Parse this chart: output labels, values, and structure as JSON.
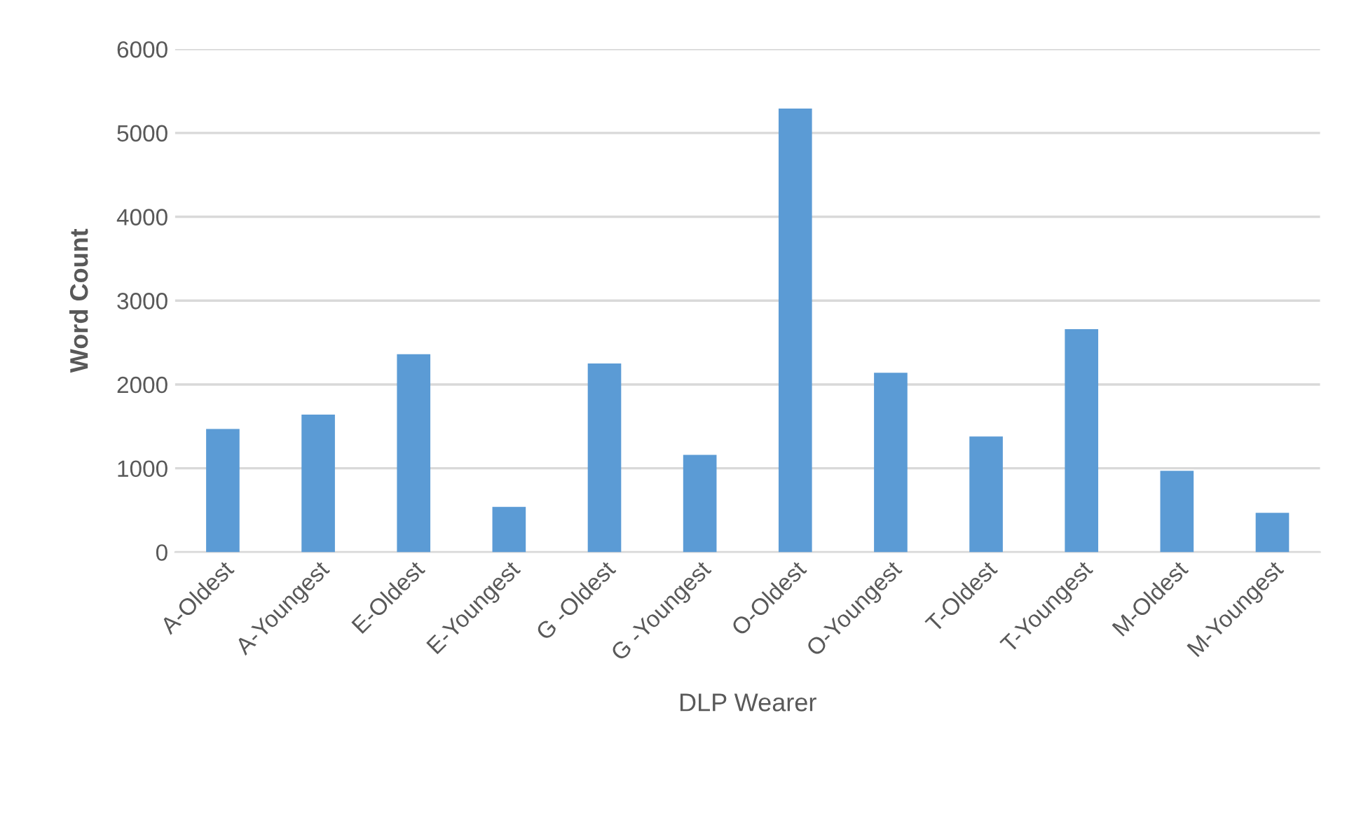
{
  "chart_data": {
    "type": "bar",
    "xlabel": "DLP Wearer",
    "ylabel": "Word Count",
    "categories": [
      "A-Oldest",
      "A-Youngest",
      "E-Oldest",
      "E-Youngest",
      "G -Oldest",
      "G -Youngest",
      "O-Oldest",
      "O-Youngest",
      "T-Oldest",
      "T-Youngest",
      "M-Oldest",
      "M-Youngest"
    ],
    "values": [
      1470,
      1640,
      2360,
      540,
      2250,
      1160,
      5290,
      2140,
      1380,
      2660,
      970,
      470
    ],
    "color": "#5b9bd5",
    "ylim": [
      0,
      6000
    ],
    "yticks": [
      0,
      1000,
      2000,
      3000,
      4000,
      5000,
      6000
    ],
    "grid": "y"
  }
}
